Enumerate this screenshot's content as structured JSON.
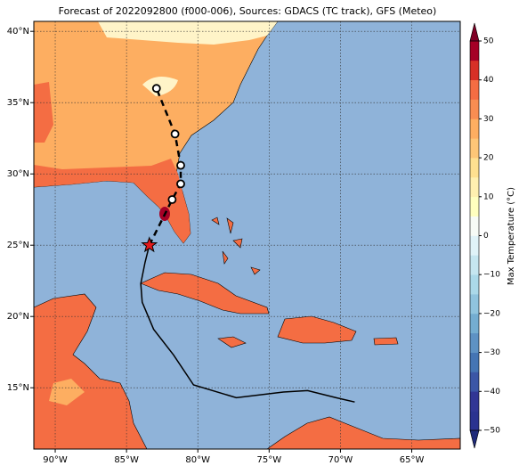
{
  "chart_data": {
    "type": "map",
    "title": "Forecast of 2022092800 (f000-006), Sources: GDACS (TC track), GFS (Meteo)",
    "xlim": [
      -91.5,
      -61.6
    ],
    "ylim": [
      10.7,
      40.7
    ],
    "xticks": [
      {
        "value": -90,
        "label": "90°W"
      },
      {
        "value": -85,
        "label": "85°W"
      },
      {
        "value": -80,
        "label": "80°W"
      },
      {
        "value": -75,
        "label": "75°W"
      },
      {
        "value": -70,
        "label": "70°W"
      },
      {
        "value": -65,
        "label": "65°W"
      }
    ],
    "yticks": [
      {
        "value": 15,
        "label": "15°N"
      },
      {
        "value": 20,
        "label": "20°N"
      },
      {
        "value": 25,
        "label": "25°N"
      },
      {
        "value": 30,
        "label": "30°N"
      },
      {
        "value": 35,
        "label": "35°N"
      },
      {
        "value": 40,
        "label": "40°N"
      }
    ],
    "grid": true,
    "series": [
      {
        "style": "solid",
        "color": "#000000",
        "x": [
          -69.0,
          -70.3,
          -72.3,
          -74.0,
          -77.3,
          -80.3,
          -81.7,
          -83.1,
          -83.9,
          -84.0,
          -83.7,
          -83.4
        ],
        "y": [
          14.0,
          14.3,
          14.8,
          14.7,
          14.3,
          15.2,
          17.3,
          19.1,
          21.0,
          22.3,
          23.8,
          25.0
        ]
      },
      {
        "style": "dashed",
        "color": "#000000",
        "marker": "circle",
        "x": [
          -83.4,
          -81.8,
          -81.2,
          -81.2,
          -81.6,
          -82.9
        ],
        "y": [
          25.0,
          28.2,
          29.3,
          30.6,
          32.8,
          36.0
        ]
      }
    ],
    "current_position": {
      "x": -83.4,
      "y": 25.0,
      "color": "#e41a1c"
    },
    "colorbar": {
      "label": "Max Temperature (°C)",
      "ylim": [
        -50,
        50
      ],
      "yticks": [
        {
          "value": -50,
          "label": "−50"
        },
        {
          "value": -40,
          "label": "−40"
        },
        {
          "value": -30,
          "label": "−30"
        },
        {
          "value": -20,
          "label": "−20"
        },
        {
          "value": -10,
          "label": "−10"
        },
        0,
        10,
        20,
        30,
        40,
        50
      ],
      "colors": [
        "#2b3390",
        "#313695",
        "#3b56a6",
        "#4575b4",
        "#5e92c4",
        "#74add1",
        "#90c4de",
        "#abd9e9",
        "#c5e6f0",
        "#e0f3f8",
        "#f7fbf6",
        "#ffffbf",
        "#fff0b0",
        "#fee090",
        "#fdc677",
        "#fdae61",
        "#f88d52",
        "#f46d43",
        "#d73027",
        "#a50026"
      ],
      "extend_colors": [
        "#1f2a7a",
        "#800026"
      ]
    }
  }
}
